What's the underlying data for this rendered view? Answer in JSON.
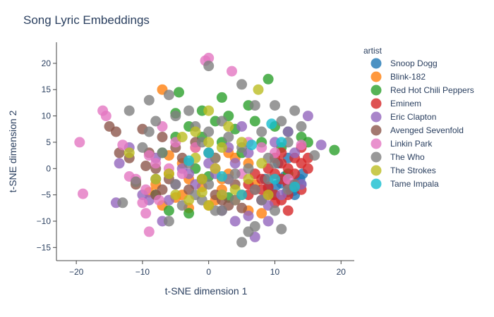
{
  "chart_data": {
    "type": "scatter",
    "title": "Song Lyric Embeddings",
    "xlabel": "t-SNE dimension 1",
    "ylabel": "t-SNE dimension 2",
    "xlim": [
      -23,
      22
    ],
    "ylim": [
      -17.5,
      24
    ],
    "xticks": [
      -20,
      -10,
      0,
      10,
      20
    ],
    "yticks": [
      -15,
      -10,
      -5,
      0,
      5,
      10,
      15,
      20
    ],
    "grid": false,
    "legend_title": "artist",
    "legend_position": "right",
    "series": [
      {
        "name": "Snoop Dogg",
        "color": "#1f77b4",
        "points": [
          [
            8.5,
            -2
          ],
          [
            10.2,
            -3.2
          ],
          [
            11.5,
            -1.5
          ],
          [
            12.8,
            -4.2
          ],
          [
            13.5,
            -2.5
          ],
          [
            9.8,
            -5
          ],
          [
            14,
            -3
          ],
          [
            11,
            -2.8
          ],
          [
            13,
            -5
          ],
          [
            10.5,
            1
          ],
          [
            12,
            2
          ],
          [
            14.2,
            -1
          ],
          [
            9,
            -3.8
          ],
          [
            11.8,
            -4.5
          ],
          [
            13.8,
            -2
          ]
        ]
      },
      {
        "name": "Blink-182",
        "color": "#ff7f0e",
        "points": [
          [
            -7,
            15
          ],
          [
            -6,
            2.5
          ],
          [
            -4,
            1
          ],
          [
            -3,
            -2
          ],
          [
            -1,
            -3.5
          ],
          [
            1,
            -6
          ],
          [
            2,
            -4
          ],
          [
            3,
            -1
          ],
          [
            4,
            2
          ],
          [
            5,
            -5
          ],
          [
            6,
            -8
          ],
          [
            7,
            -3
          ],
          [
            8,
            -8.5
          ],
          [
            -8,
            -3
          ],
          [
            -7,
            -7
          ],
          [
            -5,
            -5.5
          ],
          [
            -2,
            4
          ],
          [
            0,
            -7
          ],
          [
            2,
            -2
          ],
          [
            4,
            -6
          ],
          [
            -3,
            -7.5
          ],
          [
            -6,
            -1
          ],
          [
            -11,
            -2.5
          ],
          [
            6,
            1
          ],
          [
            3,
            3
          ],
          [
            -9,
            -4.5
          ],
          [
            1,
            2
          ],
          [
            -4,
            -5
          ]
        ]
      },
      {
        "name": "Red Hot Chili Peppers",
        "color": "#2ca02c",
        "points": [
          [
            -4.5,
            14.5
          ],
          [
            -5,
            10.5
          ],
          [
            2,
            13.5
          ],
          [
            6,
            12
          ],
          [
            9,
            17
          ],
          [
            12,
            7
          ],
          [
            15,
            5
          ],
          [
            19,
            3.5
          ],
          [
            -3,
            8
          ],
          [
            -1,
            11
          ],
          [
            1,
            9
          ],
          [
            3,
            10
          ],
          [
            4,
            7.5
          ],
          [
            7,
            9
          ],
          [
            10,
            8
          ],
          [
            11,
            4
          ],
          [
            -8,
            -5
          ],
          [
            -6,
            -8
          ],
          [
            -3,
            -8.5
          ],
          [
            0,
            -1.5
          ],
          [
            -2,
            0
          ],
          [
            3,
            -5.5
          ],
          [
            5,
            3
          ],
          [
            -1,
            6
          ],
          [
            2,
            5
          ],
          [
            8,
            5
          ],
          [
            12,
            -1
          ],
          [
            -5,
            6
          ],
          [
            -7,
            3
          ],
          [
            14,
            6
          ]
        ]
      },
      {
        "name": "Eminem",
        "color": "#d62728",
        "points": [
          [
            6,
            -3
          ],
          [
            7,
            -4
          ],
          [
            8,
            -2
          ],
          [
            9,
            -3.5
          ],
          [
            10,
            -1
          ],
          [
            11,
            -2
          ],
          [
            12,
            -3
          ],
          [
            13,
            -1
          ],
          [
            14,
            1
          ],
          [
            15,
            2
          ],
          [
            10,
            -5
          ],
          [
            11,
            -6
          ],
          [
            12,
            -8
          ],
          [
            9,
            -5
          ],
          [
            8,
            -4
          ],
          [
            13,
            -3
          ],
          [
            12,
            0
          ],
          [
            11,
            3
          ],
          [
            14,
            4
          ],
          [
            15,
            0
          ],
          [
            7,
            -1
          ],
          [
            9,
            0
          ],
          [
            10,
            2
          ],
          [
            13,
            2
          ],
          [
            8,
            -6
          ],
          [
            6,
            -5
          ],
          [
            10,
            -6.5
          ],
          [
            14,
            -4
          ],
          [
            11,
            1
          ],
          [
            12,
            -5
          ]
        ]
      },
      {
        "name": "Eric Clapton",
        "color": "#9467bd",
        "points": [
          [
            -14,
            -6.5
          ],
          [
            -13.5,
            1
          ],
          [
            -12,
            4
          ],
          [
            -9,
            -6
          ],
          [
            -7,
            -10
          ],
          [
            -5,
            -3
          ],
          [
            -3,
            -1
          ],
          [
            0,
            1
          ],
          [
            2,
            -8
          ],
          [
            4,
            -10
          ],
          [
            5,
            8
          ],
          [
            6,
            -9
          ],
          [
            7,
            -13
          ],
          [
            9,
            -10
          ],
          [
            11,
            -5
          ],
          [
            13,
            3
          ],
          [
            15,
            10
          ],
          [
            17,
            4.5
          ],
          [
            -10,
            -5
          ],
          [
            -8,
            2
          ],
          [
            -2,
            -3
          ],
          [
            1,
            -1
          ],
          [
            3,
            4
          ],
          [
            6,
            3
          ],
          [
            8,
            -6
          ],
          [
            10,
            5
          ],
          [
            12,
            7
          ],
          [
            14,
            -3
          ],
          [
            -6,
            -6
          ],
          [
            -4,
            0
          ],
          [
            2,
            -5
          ],
          [
            4,
            1
          ],
          [
            9,
            -7
          ]
        ]
      },
      {
        "name": "Avenged Sevenfold",
        "color": "#8c564b",
        "points": [
          [
            -15,
            8
          ],
          [
            -14,
            7
          ],
          [
            -13.5,
            3
          ],
          [
            -12,
            2
          ],
          [
            -10,
            7.5
          ],
          [
            -9,
            3
          ],
          [
            -8,
            -5
          ],
          [
            -7,
            6
          ],
          [
            -6,
            -2
          ],
          [
            -5,
            4
          ],
          [
            -4,
            2
          ],
          [
            -3,
            -4
          ],
          [
            -1,
            -2
          ],
          [
            1,
            -5
          ],
          [
            2,
            -6
          ],
          [
            3,
            -7
          ],
          [
            4,
            -3
          ],
          [
            5,
            -7.5
          ],
          [
            -11,
            -3
          ],
          [
            -9.5,
            0.5
          ],
          [
            -8,
            0
          ],
          [
            -7,
            -4
          ],
          [
            -2,
            5
          ],
          [
            0,
            3
          ]
        ]
      },
      {
        "name": "Linkin Park",
        "color": "#e377c2",
        "points": [
          [
            -19.5,
            5
          ],
          [
            -19,
            -4.8
          ],
          [
            -16,
            11
          ],
          [
            -15.5,
            10
          ],
          [
            -13,
            4.5
          ],
          [
            -12,
            -1.5
          ],
          [
            -10,
            -6.5
          ],
          [
            -9.5,
            -8.5
          ],
          [
            -9,
            -12
          ],
          [
            -8,
            1
          ],
          [
            -7,
            8
          ],
          [
            -6,
            0
          ],
          [
            -5,
            5
          ],
          [
            -0.5,
            20.5
          ],
          [
            0,
            21
          ],
          [
            3.5,
            18.5
          ],
          [
            -11,
            -2
          ],
          [
            -9,
            2.5
          ],
          [
            -7.5,
            -6
          ],
          [
            -4,
            -1
          ],
          [
            -2,
            4
          ],
          [
            1,
            0
          ],
          [
            3,
            -2
          ],
          [
            5,
            -1
          ],
          [
            6,
            5
          ],
          [
            8,
            4
          ],
          [
            10,
            3
          ],
          [
            12,
            -2
          ],
          [
            14,
            4.5
          ],
          [
            -9.5,
            -4
          ]
        ]
      },
      {
        "name": "The Who",
        "color": "#7f7f7f",
        "points": [
          [
            0,
            19.5
          ],
          [
            -12,
            11
          ],
          [
            -9,
            13
          ],
          [
            -6,
            14
          ],
          [
            5,
            16
          ],
          [
            7,
            12
          ],
          [
            10,
            12
          ],
          [
            13,
            11
          ],
          [
            -13,
            -6.5
          ],
          [
            -11,
            -2.5
          ],
          [
            -10,
            4
          ],
          [
            -9,
            7
          ],
          [
            -8,
            9
          ],
          [
            -6,
            -10
          ],
          [
            -5,
            -3
          ],
          [
            -3,
            1
          ],
          [
            -2,
            8
          ],
          [
            -1,
            5
          ],
          [
            0,
            -3
          ],
          [
            1,
            2
          ],
          [
            2,
            -8
          ],
          [
            3,
            6
          ],
          [
            4,
            -1
          ],
          [
            5,
            -14
          ],
          [
            6,
            -12
          ],
          [
            7,
            -11
          ],
          [
            8,
            -6
          ],
          [
            9,
            -2
          ],
          [
            10,
            1
          ],
          [
            11,
            -11.5
          ],
          [
            12,
            -4
          ],
          [
            13,
            -3
          ],
          [
            14,
            8
          ],
          [
            16,
            2.5
          ],
          [
            -4,
            -7
          ],
          [
            -2,
            -5
          ],
          [
            0,
            7
          ],
          [
            2,
            9
          ],
          [
            4,
            -6
          ],
          [
            6,
            0
          ],
          [
            8,
            7
          ],
          [
            10,
            -8
          ],
          [
            12,
            5
          ],
          [
            -7,
            3
          ],
          [
            -3,
            11
          ],
          [
            1,
            -8
          ],
          [
            3,
            -2
          ],
          [
            5,
            4
          ],
          [
            7,
            -4
          ],
          [
            9,
            2
          ],
          [
            11,
            9
          ],
          [
            -1,
            -6
          ],
          [
            -5,
            10
          ],
          [
            -8,
            -2
          ]
        ]
      },
      {
        "name": "The Strokes",
        "color": "#bcbd22",
        "points": [
          [
            7.5,
            15
          ],
          [
            0,
            11
          ],
          [
            -2,
            7
          ],
          [
            -4,
            6
          ],
          [
            -6,
            -1
          ],
          [
            -1,
            -4.5
          ],
          [
            0,
            -7
          ],
          [
            2,
            -5
          ],
          [
            3,
            8
          ],
          [
            6,
            -2
          ],
          [
            -12,
            3
          ],
          [
            -8,
            -2
          ],
          [
            -3,
            -6
          ],
          [
            -1,
            -2
          ],
          [
            1,
            0
          ],
          [
            4,
            -4
          ],
          [
            5,
            5
          ],
          [
            8,
            1
          ],
          [
            -5,
            -5
          ],
          [
            -2,
            2
          ],
          [
            0,
            5
          ],
          [
            2,
            4
          ],
          [
            9,
            -5
          ]
        ]
      },
      {
        "name": "Tame Impala",
        "color": "#17becf",
        "points": [
          [
            9.5,
            8.5
          ],
          [
            5,
            -5
          ],
          [
            6.5,
            4.5
          ],
          [
            0,
            3
          ],
          [
            -3,
            1.5
          ],
          [
            2,
            -1.5
          ],
          [
            10,
            -2
          ],
          [
            13,
            -3.5
          ],
          [
            11,
            5
          ]
        ]
      }
    ]
  }
}
